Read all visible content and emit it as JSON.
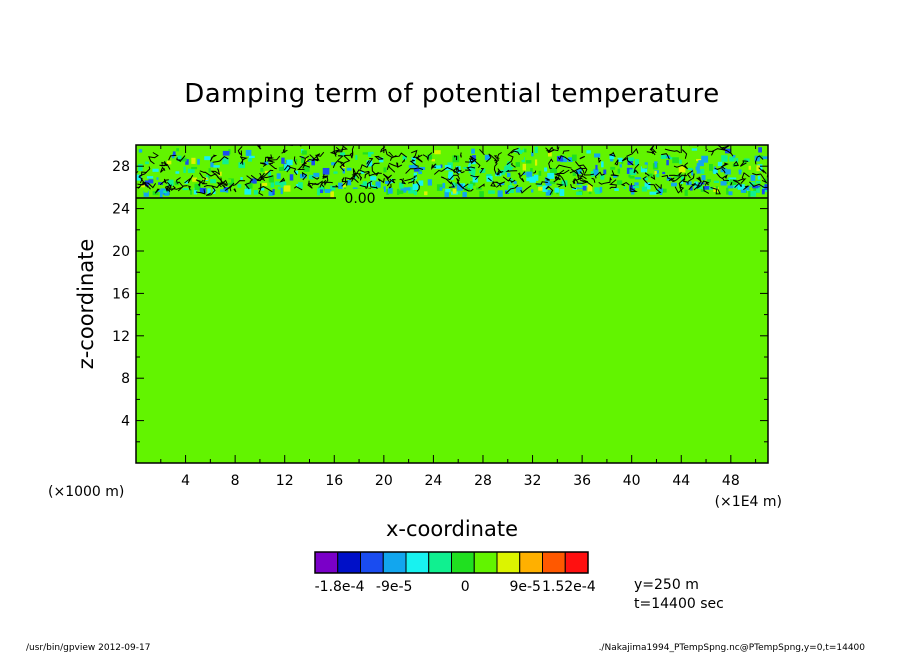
{
  "chart_data": {
    "type": "heatmap",
    "title": "Damping term of potential temperature",
    "xlabel": "x-coordinate",
    "ylabel": "z-coordinate",
    "x_unit_label": "(×1000 m)",
    "x_multiplier_label": "(×1E4 m)",
    "xlim": [
      0,
      51
    ],
    "ylim": [
      0,
      30
    ],
    "x_ticks": [
      4,
      8,
      12,
      16,
      20,
      24,
      28,
      32,
      36,
      40,
      44,
      48
    ],
    "y_ticks": [
      4,
      8,
      12,
      16,
      20,
      24,
      28
    ],
    "contour_label": "0.00",
    "contour_level_z": 25,
    "background_value": 0,
    "damping_layer_z": [
      25,
      30
    ],
    "colorbar": {
      "colors": [
        "#7a00c8",
        "#0010c8",
        "#1a4cf0",
        "#12a6ee",
        "#18f2f0",
        "#10f090",
        "#20e020",
        "#62f400",
        "#dcf400",
        "#ffb000",
        "#ff5800",
        "#ff1010"
      ],
      "tick_labels": [
        "-1.8e-4",
        "-9e-5",
        "0",
        "9e-5",
        "1.52e-4"
      ]
    },
    "annotations": [
      "y=250 m",
      "t=14400 sec"
    ]
  },
  "footer": {
    "left": "/usr/bin/gpview   2012-09-17",
    "right": "./Nakajima1994_PTempSpng.nc@PTempSpng,y=0,t=14400"
  }
}
